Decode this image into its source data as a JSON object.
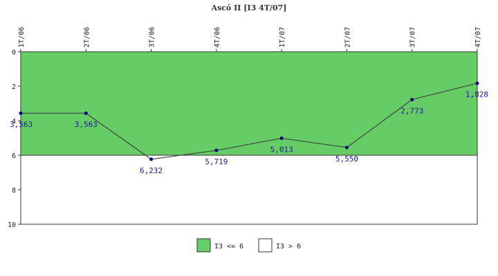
{
  "chart_data": {
    "type": "line",
    "title": "Ascó II [I3 4T/07]",
    "categories": [
      "1T/06",
      "2T/06",
      "3T/06",
      "4T/06",
      "1T/07",
      "2T/07",
      "3T/07",
      "4T/07"
    ],
    "series": [
      {
        "values": [
          3.563,
          3.563,
          6.232,
          5.719,
          5.013,
          5.55,
          2.773,
          1.828
        ],
        "labels": [
          "3,563",
          "3,563",
          "6,232",
          "5,719",
          "5,013",
          "5,550",
          "2,773",
          "1,828"
        ],
        "color": "#000080"
      }
    ],
    "ylim": [
      0,
      10
    ],
    "y_inverted": true,
    "yticks": [
      "0",
      "2",
      "4",
      "6",
      "8",
      "10"
    ],
    "threshold": 6,
    "bands": [
      {
        "label": "I3 <= 6",
        "color": "#66cc66"
      },
      {
        "label": "I3 > 6",
        "color": "#ffffff"
      }
    ],
    "legend_position": "bottom-center",
    "grid": false
  }
}
